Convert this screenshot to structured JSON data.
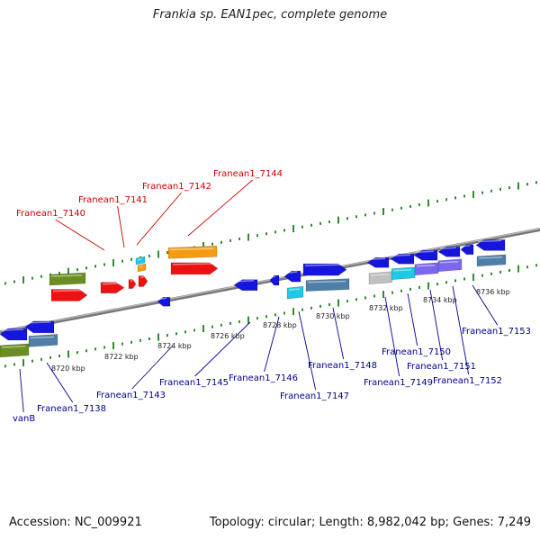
{
  "title": "Frankia sp. EAN1pec, complete genome",
  "footer": {
    "accession": "Accession: NC_009921",
    "summary": "Topology: circular; Length: 8,982,042 bp; Genes: 7,249"
  },
  "colors": {
    "backbone": "#8a8a8a",
    "tick": "#2e8b2e",
    "label_top": "#cc0000",
    "label_bottom": "#00008b",
    "red": "#ee1111",
    "orange": "#f39c12",
    "blue": "#1515dd",
    "olive": "#6b8e23",
    "cyan": "#1ec8e6",
    "steel": "#4f7fa8",
    "purple": "#7b68ee",
    "grey": "#c0c0c0"
  },
  "scale_labels": [
    "8720 kbp",
    "8722 kbp",
    "8724 kbp",
    "8726 kbp",
    "8728 kbp",
    "8730 kbp",
    "8732 kbp",
    "8734 kbp",
    "8736 kbp"
  ],
  "top_genes": [
    "Franean1_7140",
    "Franean1_7141",
    "Franean1_7142",
    "Franean1_7144"
  ],
  "bottom_genes": [
    "vanB",
    "Franean1_7138",
    "Franean1_7143",
    "Franean1_7145",
    "Franean1_7146",
    "Franean1_7147",
    "Franean1_7148",
    "Franean1_7149",
    "Franean1_7150",
    "Franean1_7151",
    "Franean1_7152",
    "Franean1_7153"
  ]
}
